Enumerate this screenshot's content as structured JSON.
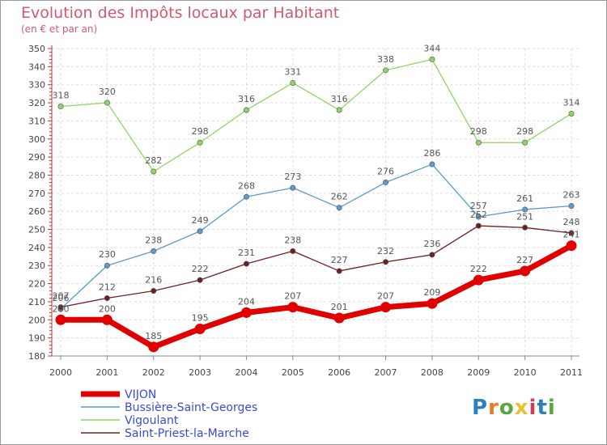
{
  "header": {
    "title": "Evolution des Impôts locaux par Habitant",
    "subtitle": "(en € et par an)"
  },
  "logo": {
    "letters": [
      "P",
      "r",
      "o",
      "x",
      "i",
      "t",
      "i"
    ],
    "colors": [
      "#2d7fc1",
      "#e8792b",
      "#5aa83b",
      "#e8c22b",
      "#d23b5a",
      "#2d7fc1",
      "#5aa83b"
    ]
  },
  "chart_data": {
    "type": "line",
    "title": "Evolution des Impôts locaux par Habitant",
    "subtitle": "(en € et par an)",
    "xlabel": "",
    "ylabel": "",
    "x": [
      "2000",
      "2001",
      "2002",
      "2003",
      "2004",
      "2005",
      "2006",
      "2007",
      "2008",
      "2009",
      "2010",
      "2011"
    ],
    "ylim": [
      180,
      350
    ],
    "yticks": [
      180,
      190,
      200,
      210,
      220,
      230,
      240,
      250,
      260,
      270,
      280,
      290,
      300,
      310,
      320,
      330,
      340,
      350
    ],
    "grid": true,
    "legend": "bottom-left",
    "series": [
      {
        "name": "VIJON",
        "color": "#e00000",
        "values": [
          200,
          200,
          185,
          195,
          204,
          207,
          201,
          207,
          209,
          222,
          227,
          241
        ]
      },
      {
        "name": "Bussière-Saint-Georges",
        "color": "#5b9bd0",
        "values": [
          206,
          230,
          238,
          249,
          268,
          273,
          262,
          276,
          286,
          257,
          261,
          263
        ]
      },
      {
        "name": "Vigoulant",
        "color": "#8fd466",
        "values": [
          318,
          320,
          282,
          298,
          316,
          331,
          316,
          338,
          344,
          298,
          298,
          314
        ]
      },
      {
        "name": "Saint-Priest-la-Marche",
        "color": "#6e2020",
        "values": [
          207,
          212,
          216,
          222,
          231,
          238,
          227,
          232,
          236,
          252,
          251,
          248
        ]
      }
    ]
  }
}
